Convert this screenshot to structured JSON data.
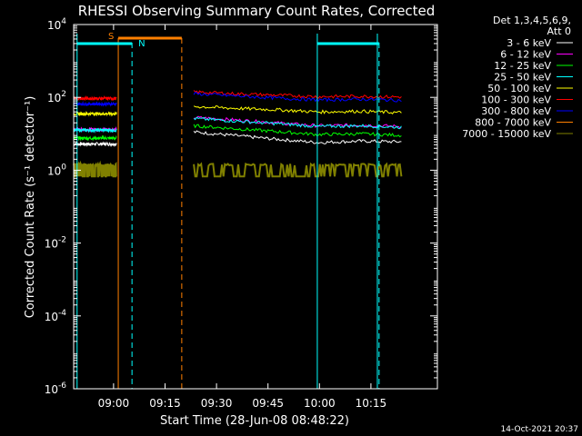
{
  "chart_data": {
    "type": "line",
    "title": "RHESSI Observing Summary Count Rates, Corrected",
    "xlabel": "Start Time (28-Jun-08 08:48:22)",
    "ylabel": "Corrected Count Rate (s⁻¹ detector⁻¹)",
    "x_unit": "minutes after 08:48:22",
    "xlim": [
      0,
      106
    ],
    "ylim_log10": [
      -6,
      4
    ],
    "scale": "log",
    "x_ticks": [
      {
        "label": "09:00",
        "value": 11.63
      },
      {
        "label": "09:15",
        "value": 26.63
      },
      {
        "label": "09:30",
        "value": 41.63
      },
      {
        "label": "09:45",
        "value": 56.63
      },
      {
        "label": "10:00",
        "value": 71.63
      },
      {
        "label": "10:15",
        "value": 86.63
      }
    ],
    "y_ticks": [
      {
        "base": "10",
        "exp": "4",
        "value": 4
      },
      {
        "base": "10",
        "exp": "2",
        "value": 2
      },
      {
        "base": "10",
        "exp": "0",
        "value": 0
      },
      {
        "base": "10",
        "exp": "-2",
        "value": -2
      },
      {
        "base": "10",
        "exp": "-4",
        "value": -4
      },
      {
        "base": "10",
        "exp": "-6",
        "value": -6
      }
    ],
    "legend_header": [
      "Det 1,3,4,5,6,9,",
      "Att 0"
    ],
    "legend_placement": "right",
    "segments": [
      [
        0,
        12.5
      ],
      [
        35,
        95.5
      ]
    ],
    "series": [
      {
        "name": "3 - 6 keV",
        "color": "#ffffff",
        "seg1_log10": [
          0.72,
          0.72
        ],
        "seg2_log10": [
          1.05,
          0.95,
          0.85,
          0.76,
          0.8,
          0.78
        ]
      },
      {
        "name": "6 - 12 keV",
        "color": "#ff00ff",
        "seg1_log10": [
          1.12,
          1.12
        ],
        "seg2_log10": [
          1.45,
          1.38,
          1.3,
          1.22,
          1.24,
          1.2
        ]
      },
      {
        "name": "12 - 25 keV",
        "color": "#00ff00",
        "seg1_log10": [
          0.88,
          0.88
        ],
        "seg2_log10": [
          1.22,
          1.14,
          1.06,
          0.98,
          1.0,
          0.96
        ]
      },
      {
        "name": "25 - 50 keV",
        "color": "#00ffff",
        "seg1_log10": [
          1.1,
          1.1
        ],
        "seg2_log10": [
          1.42,
          1.35,
          1.28,
          1.2,
          1.22,
          1.18
        ]
      },
      {
        "name": "50 - 100 keV",
        "color": "#ffff00",
        "seg1_log10": [
          1.55,
          1.55
        ],
        "seg2_log10": [
          1.75,
          1.7,
          1.66,
          1.6,
          1.62,
          1.58
        ]
      },
      {
        "name": "100 - 300 keV",
        "color": "#ff0000",
        "seg1_log10": [
          1.97,
          1.97
        ],
        "seg2_log10": [
          2.15,
          2.1,
          2.06,
          2.02,
          2.03,
          2.01
        ]
      },
      {
        "name": "300 - 800 keV",
        "color": "#0000ff",
        "seg1_log10": [
          1.82,
          1.82
        ],
        "seg2_log10": [
          2.1,
          2.04,
          1.98,
          1.93,
          1.95,
          1.92
        ]
      },
      {
        "name": "800 - 7000 keV",
        "color": "#ff8000",
        "seg1_log10": [],
        "seg2_log10": []
      },
      {
        "name": "7000 - 15000 keV",
        "color": "#808000",
        "seg1_log10": [
          0.15,
          0.15
        ],
        "seg2_log10": [
          0.15,
          0.15,
          0.15,
          0.15,
          0.15,
          0.15
        ]
      }
    ],
    "markers": {
      "cyan_solid_x": [
        1.0,
        71.0,
        88.5
      ],
      "cyan_dashed_x": [
        17.0,
        89.0
      ],
      "orange_solid_x": [
        13.0
      ],
      "orange_dashed_x": [
        31.5
      ],
      "saa_bar": {
        "label": "S",
        "x": [
          13.0,
          31.5
        ],
        "color": "#ff8000"
      },
      "night_bar_1": {
        "label": "N",
        "x": [
          1.0,
          17.0
        ],
        "color": "#00ffff"
      },
      "night_bar_2": {
        "x": [
          71.0,
          89.0
        ],
        "color": "#00ffff"
      }
    }
  },
  "timestamp": "14-Oct-2021 20:37"
}
